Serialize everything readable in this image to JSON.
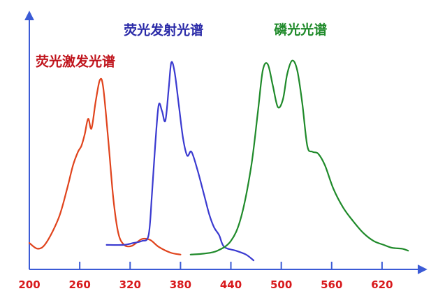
{
  "chart_data": {
    "type": "line",
    "title": "",
    "xlabel": "",
    "ylabel": "",
    "xlim": [
      200,
      665
    ],
    "ylim": [
      0,
      1.05
    ],
    "xticks": [
      200,
      260,
      320,
      380,
      440,
      500,
      560,
      620
    ],
    "grid": false,
    "legend": "none",
    "axis_color": "#3b5bd6",
    "tick_label_color": "#d8191c",
    "series": [
      {
        "name": "荧光激发光谱",
        "color": "#e0431c",
        "label_color": "#c0141c",
        "points": [
          [
            200,
            0.05
          ],
          [
            210,
            0.02
          ],
          [
            220,
            0.05
          ],
          [
            235,
            0.18
          ],
          [
            245,
            0.33
          ],
          [
            252,
            0.45
          ],
          [
            258,
            0.52
          ],
          [
            262,
            0.55
          ],
          [
            266,
            0.61
          ],
          [
            270,
            0.69
          ],
          [
            274,
            0.64
          ],
          [
            279,
            0.78
          ],
          [
            284,
            0.89
          ],
          [
            288,
            0.85
          ],
          [
            294,
            0.58
          ],
          [
            300,
            0.28
          ],
          [
            306,
            0.1
          ],
          [
            313,
            0.04
          ],
          [
            322,
            0.035
          ],
          [
            334,
            0.07
          ],
          [
            344,
            0.065
          ],
          [
            354,
            0.03
          ],
          [
            368,
            0.0
          ],
          [
            380,
            -0.01
          ]
        ]
      },
      {
        "name": "荧光发射光谱",
        "color": "#3a3ad0",
        "label_color": "#2a2aa8",
        "points": [
          [
            292,
            0.04
          ],
          [
            312,
            0.04
          ],
          [
            324,
            0.05
          ],
          [
            334,
            0.06
          ],
          [
            342,
            0.09
          ],
          [
            346,
            0.3
          ],
          [
            350,
            0.56
          ],
          [
            354,
            0.76
          ],
          [
            358,
            0.73
          ],
          [
            362,
            0.68
          ],
          [
            366,
            0.85
          ],
          [
            369,
            0.98
          ],
          [
            373,
            0.93
          ],
          [
            378,
            0.76
          ],
          [
            383,
            0.59
          ],
          [
            388,
            0.5
          ],
          [
            393,
            0.52
          ],
          [
            400,
            0.43
          ],
          [
            408,
            0.3
          ],
          [
            414,
            0.2
          ],
          [
            420,
            0.13
          ],
          [
            426,
            0.09
          ],
          [
            432,
            0.03
          ],
          [
            446,
            0.01
          ],
          [
            458,
            -0.01
          ],
          [
            467,
            -0.04
          ]
        ]
      },
      {
        "name": "磷光光谱",
        "color": "#1f8a2a",
        "label_color": "#1f8a2a",
        "points": [
          [
            392,
            -0.01
          ],
          [
            408,
            -0.005
          ],
          [
            424,
            0.01
          ],
          [
            440,
            0.06
          ],
          [
            452,
            0.18
          ],
          [
            464,
            0.44
          ],
          [
            472,
            0.72
          ],
          [
            478,
            0.94
          ],
          [
            484,
            0.97
          ],
          [
            490,
            0.86
          ],
          [
            496,
            0.75
          ],
          [
            502,
            0.79
          ],
          [
            507,
            0.92
          ],
          [
            513,
            0.99
          ],
          [
            519,
            0.94
          ],
          [
            525,
            0.77
          ],
          [
            531,
            0.55
          ],
          [
            537,
            0.52
          ],
          [
            544,
            0.51
          ],
          [
            552,
            0.45
          ],
          [
            562,
            0.33
          ],
          [
            574,
            0.23
          ],
          [
            586,
            0.16
          ],
          [
            598,
            0.1
          ],
          [
            610,
            0.06
          ],
          [
            622,
            0.04
          ],
          [
            632,
            0.025
          ],
          [
            644,
            0.02
          ],
          [
            651,
            0.01
          ]
        ]
      }
    ]
  }
}
